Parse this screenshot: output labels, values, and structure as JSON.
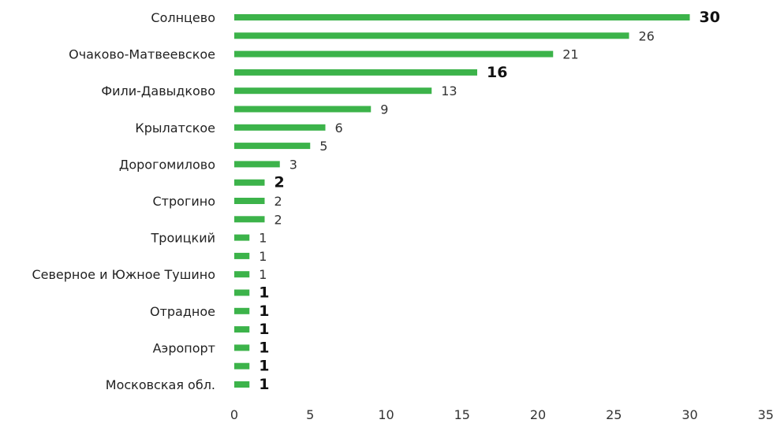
{
  "chart_data": {
    "type": "bar",
    "orientation": "horizontal",
    "categories": [
      "Солнцево",
      "",
      "Очаково-Матвеевское",
      "",
      "Фили-Давыдково",
      "",
      "Крылатское",
      "",
      "Дорогомилово",
      "",
      "Строгино",
      "",
      "Троицкий",
      "",
      "Северное и Южное Тушино",
      "",
      "Отрадное",
      "",
      "Аэропорт",
      "",
      "Московская обл."
    ],
    "values": [
      30,
      26,
      21,
      16,
      13,
      9,
      6,
      5,
      3,
      2,
      2,
      2,
      1,
      1,
      1,
      1,
      1,
      1,
      1,
      1,
      1
    ],
    "value_labels": [
      "30",
      "26",
      "21",
      "16",
      "13",
      "9",
      "6",
      "5",
      "3",
      "2",
      "2",
      "2",
      "1",
      "1",
      "1",
      "1",
      "1",
      "1",
      "1",
      "1",
      "1"
    ],
    "bold_value_labels": [
      true,
      false,
      false,
      true,
      false,
      false,
      false,
      false,
      false,
      true,
      false,
      false,
      false,
      false,
      false,
      true,
      true,
      true,
      true,
      true,
      true
    ],
    "xlim": [
      0,
      35
    ],
    "x_ticks": [
      "0",
      "5",
      "10",
      "15",
      "20",
      "25",
      "30",
      "35"
    ],
    "title": "",
    "xlabel": "",
    "ylabel": "",
    "grid": false,
    "legend": "none",
    "bar_color": "#3cb34a"
  }
}
